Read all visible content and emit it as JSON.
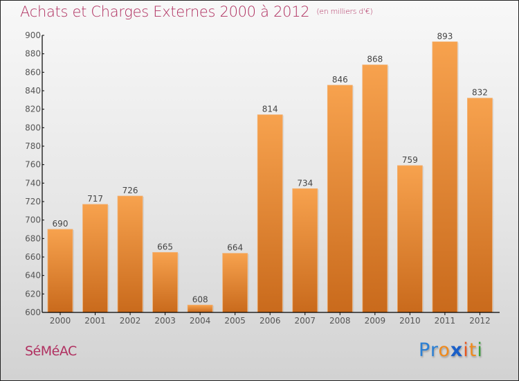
{
  "chart_data": {
    "type": "bar",
    "title": "Achats et Charges Externes 2000 à 2012",
    "subtitle": "(en milliers d'€)",
    "xlabel": "",
    "ylabel": "",
    "categories": [
      "2000",
      "2001",
      "2002",
      "2003",
      "2004",
      "2005",
      "2006",
      "2007",
      "2008",
      "2009",
      "2010",
      "2011",
      "2012"
    ],
    "values": [
      690,
      717,
      726,
      665,
      608,
      664,
      814,
      734,
      846,
      868,
      759,
      893,
      832
    ],
    "ylim": [
      600,
      900
    ],
    "yticks": [
      600,
      620,
      640,
      660,
      680,
      700,
      720,
      740,
      760,
      780,
      800,
      820,
      840,
      860,
      880,
      900
    ],
    "grid": false,
    "legend": "none",
    "bar_color_top": "#f7a24e",
    "bar_color_bottom": "#c96a1c"
  },
  "footer": {
    "town": "SéMéAC",
    "brand_letters": [
      {
        "ch": "P",
        "color": "#2a7fd4"
      },
      {
        "ch": "r",
        "color": "#2a7fd4"
      },
      {
        "ch": "o",
        "color": "#f08a1c"
      },
      {
        "ch": "x",
        "color": "#1a5fc8"
      },
      {
        "ch": "i",
        "color": "#e8541c"
      },
      {
        "ch": "t",
        "color": "#f08a1c"
      },
      {
        "ch": "i",
        "color": "#3aa03a"
      }
    ]
  }
}
